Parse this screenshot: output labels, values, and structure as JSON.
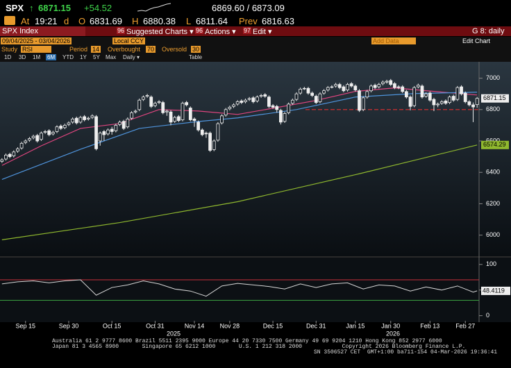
{
  "header": {
    "ticker": "SPX",
    "direction": "↑",
    "last": "6871.15",
    "change": "+54.52",
    "bid_ask": "6869.60 / 6873.09",
    "time_label": "At",
    "time": "19:21",
    "d": "d",
    "open_label": "O",
    "open": "6831.69",
    "high_label": "H",
    "high": "6880.38",
    "low_label": "L",
    "low": "6811.64",
    "prev_label": "Prev",
    "prev": "6816.63"
  },
  "menu": {
    "security": "SPX Index",
    "items": [
      {
        "num": "96",
        "label": "Suggested Charts ▾"
      },
      {
        "num": "96",
        "label": "Actions ▾"
      },
      {
        "num": "97",
        "label": "Edit ▾"
      }
    ],
    "right": "G 8: daily"
  },
  "toolbar": {
    "date_range": "09/04/2025 - 03/04/2026",
    "currency": "Local CCY",
    "add_data": "Add Data",
    "edit_chart": "Edit Chart"
  },
  "study": {
    "study_label": "Study",
    "study": "RSI",
    "period_label": "Period",
    "period": "14",
    "overbought_label": "Overbought",
    "overbought": "70",
    "oversold_label": "Oversold",
    "oversold": "30"
  },
  "ranges": {
    "items": [
      "1D",
      "3D",
      "1M",
      "6M",
      "YTD",
      "1Y",
      "5Y",
      "Max"
    ],
    "active": 3,
    "frequency": "Daily ▾",
    "table": "Table"
  },
  "footer": {
    "lines": [
      "Australia 61 2 9777 8600 Brazil 5511 2395 9000 Europe 44 20 7330 7500 Germany 49 69 9204 1210 Hong Kong 852 2977 6000",
      "Japan 81 3 4565 8900       Singapore 65 6212 1000       U.S. 1 212 318 2000            Copyright 2026 Bloomberg Finance L.P.",
      "SN 3506527 CET  GMT+1:00 ba711-154 04-Mar-2026 19:36:41"
    ]
  },
  "chart_data": [
    {
      "type": "candlestick",
      "ylim": [
        5870,
        7100
      ],
      "yticks": [
        6000,
        6200,
        6400,
        6600,
        6800,
        7000
      ],
      "categories": [
        null,
        null,
        null,
        null,
        null,
        null,
        "Sep 15",
        null,
        null,
        null,
        null,
        null,
        null,
        null,
        null,
        null,
        null,
        "Sep 30",
        null,
        null,
        null,
        null,
        null,
        null,
        null,
        null,
        null,
        null,
        "Oct 15",
        null,
        null,
        null,
        null,
        null,
        null,
        null,
        null,
        null,
        null,
        "Oct 31",
        null,
        null,
        null,
        null,
        null,
        null,
        null,
        null,
        null,
        "Nov 14",
        null,
        null,
        null,
        null,
        null,
        null,
        null,
        null,
        "Nov 28",
        null,
        null,
        null,
        null,
        null,
        null,
        null,
        null,
        null,
        null,
        "Dec 15",
        null,
        null,
        null,
        null,
        null,
        null,
        null,
        null,
        null,
        null,
        "Dec 31",
        null,
        null,
        null,
        null,
        null,
        null,
        null,
        null,
        null,
        "Jan 15",
        null,
        null,
        null,
        null,
        null,
        null,
        null,
        null,
        "Jan 30",
        null,
        null,
        null,
        null,
        null,
        null,
        null,
        null,
        null,
        "Feb 13",
        null,
        null,
        null,
        null,
        null,
        null,
        null,
        null,
        "Feb 27",
        null,
        null,
        null
      ],
      "years": [
        "2025",
        "2026"
      ],
      "open": [
        6470,
        6485,
        6515,
        6505,
        6535,
        6555,
        6590,
        6605,
        6620,
        6635,
        6610,
        6655,
        6665,
        6645,
        6660,
        6695,
        6685,
        6705,
        6720,
        6745,
        6720,
        6755,
        6740,
        6750,
        6755,
        6600,
        6660,
        6645,
        6675,
        6665,
        6705,
        6725,
        6690,
        6745,
        6785,
        6800,
        6865,
        6885,
        6880,
        6825,
        6845,
        6845,
        6785,
        6785,
        6725,
        6755,
        6735,
        6845,
        6810,
        6740,
        6720,
        6670,
        6650,
        6650,
        6545,
        6605,
        6715,
        6765,
        6805,
        6820,
        6835,
        6855,
        6850,
        6865,
        6875,
        6855,
        6885,
        6895,
        6880,
        6825,
        6820,
        6795,
        6725,
        6780,
        6840,
        6865,
        6905,
        6935,
        6935,
        6905,
        6885,
        6850,
        6905,
        6925,
        6945,
        6950,
        6960,
        6945,
        6925,
        6965,
        6950,
        6920,
        6800,
        6880,
        6920,
        6955,
        6945,
        6965,
        6975,
        6985,
        6965,
        6945,
        6945,
        6915,
        6880,
        6825,
        6945,
        6950,
        6885,
        6905,
        6865,
        6830,
        6840,
        6855,
        6845,
        6885,
        6865,
        6945,
        6905,
        6850,
        6830,
        6831.69
      ],
      "high": [
        6490,
        6520,
        6525,
        6540,
        6560,
        6595,
        6610,
        6625,
        6640,
        6645,
        6660,
        6670,
        6675,
        6665,
        6700,
        6705,
        6710,
        6725,
        6750,
        6755,
        6760,
        6765,
        6755,
        6770,
        6765,
        6660,
        6670,
        6680,
        6690,
        6710,
        6730,
        6735,
        6750,
        6790,
        6800,
        6870,
        6890,
        6900,
        6890,
        6850,
        6860,
        6855,
        6800,
        6795,
        6760,
        6765,
        6850,
        6855,
        6820,
        6750,
        6730,
        6680,
        6660,
        6660,
        6610,
        6720,
        6770,
        6810,
        6825,
        6840,
        6860,
        6865,
        6870,
        6880,
        6885,
        6890,
        6900,
        6905,
        6890,
        6835,
        6830,
        6805,
        6785,
        6845,
        6870,
        6910,
        6940,
        6945,
        6945,
        6915,
        6895,
        6910,
        6930,
        6950,
        6955,
        6970,
        6970,
        6955,
        6970,
        6975,
        6960,
        6930,
        6885,
        6925,
        6960,
        6965,
        6970,
        6985,
        6990,
        6995,
        6975,
        6955,
        6955,
        6925,
        6890,
        6950,
        6965,
        6960,
        6910,
        6915,
        6875,
        6845,
        6860,
        6865,
        6890,
        6895,
        6950,
        6955,
        6915,
        6860,
        6845,
        6880.38
      ],
      "low": [
        6460,
        6475,
        6490,
        6495,
        6525,
        6545,
        6580,
        6595,
        6610,
        6590,
        6600,
        6645,
        6630,
        6635,
        6650,
        6670,
        6675,
        6695,
        6710,
        6705,
        6710,
        6725,
        6730,
        6740,
        6540,
        6570,
        6600,
        6635,
        6640,
        6655,
        6695,
        6670,
        6680,
        6735,
        6775,
        6790,
        6855,
        6875,
        6810,
        6815,
        6835,
        6770,
        6760,
        6700,
        6715,
        6720,
        6725,
        6820,
        6725,
        6690,
        6660,
        6630,
        6620,
        6530,
        6535,
        6595,
        6705,
        6755,
        6795,
        6810,
        6825,
        6835,
        6840,
        6855,
        6840,
        6845,
        6875,
        6875,
        6810,
        6805,
        6780,
        6705,
        6715,
        6770,
        6830,
        6855,
        6895,
        6925,
        6895,
        6880,
        6835,
        6840,
        6895,
        6915,
        6935,
        6940,
        6930,
        6910,
        6915,
        6940,
        6915,
        6785,
        6790,
        6870,
        6910,
        6930,
        6935,
        6955,
        6965,
        6950,
        6930,
        6930,
        6905,
        6870,
        6795,
        6815,
        6935,
        6870,
        6875,
        6850,
        6790,
        6815,
        6830,
        6830,
        6835,
        6850,
        6855,
        6890,
        6840,
        6820,
        6720,
        6811.64
      ],
      "close": [
        6480,
        6510,
        6500,
        6530,
        6550,
        6585,
        6600,
        6615,
        6630,
        6600,
        6650,
        6660,
        6640,
        6655,
        6690,
        6680,
        6700,
        6715,
        6740,
        6715,
        6750,
        6735,
        6745,
        6760,
        6550,
        6650,
        6640,
        6670,
        6660,
        6700,
        6720,
        6680,
        6740,
        6780,
        6790,
        6860,
        6880,
        6890,
        6820,
        6840,
        6850,
        6780,
        6790,
        6720,
        6750,
        6730,
        6840,
        6830,
        6735,
        6730,
        6670,
        6640,
        6645,
        6540,
        6600,
        6710,
        6760,
        6800,
        6815,
        6830,
        6850,
        6845,
        6860,
        6870,
        6850,
        6880,
        6890,
        6885,
        6820,
        6815,
        6800,
        6720,
        6775,
        6835,
        6860,
        6900,
        6930,
        6935,
        6905,
        6890,
        6845,
        6900,
        6920,
        6940,
        6945,
        6960,
        6940,
        6920,
        6960,
        6950,
        6925,
        6795,
        6875,
        6915,
        6950,
        6940,
        6960,
        6975,
        6980,
        6960,
        6940,
        6940,
        6915,
        6880,
        6820,
        6940,
        6955,
        6880,
        6900,
        6860,
        6830,
        6835,
        6850,
        6840,
        6880,
        6860,
        6940,
        6900,
        6850,
        6830,
        6816.63,
        6871.15
      ],
      "reference_line": 6800,
      "reference_color": "#e03030",
      "series": [
        {
          "color": "#e0457f",
          "x": [
            0,
            10,
            20,
            30,
            40,
            50,
            60,
            70,
            80,
            90,
            100,
            110,
            121
          ],
          "values": [
            6444,
            6569,
            6680,
            6711,
            6800,
            6791,
            6769,
            6813,
            6858,
            6916,
            6938,
            6916,
            6893
          ]
        },
        {
          "color": "#4f94dc",
          "x": [
            0,
            20,
            35,
            50,
            60,
            75,
            90,
            105,
            121
          ],
          "values": [
            6355,
            6547,
            6680,
            6724,
            6747,
            6800,
            6880,
            6902,
            6911
          ]
        },
        {
          "color": "#8fb82e",
          "x": [
            0,
            30,
            60,
            91,
            121
          ],
          "values": [
            5970,
            6080,
            6213,
            6391,
            6574.29
          ]
        }
      ]
    },
    {
      "type": "line",
      "ylim": [
        -10,
        112
      ],
      "yticks": [
        0,
        50,
        100
      ],
      "color": "#d8d8d8",
      "x": [
        0,
        4,
        8,
        12,
        16,
        20,
        24,
        28,
        32,
        36,
        40,
        44,
        48,
        52,
        56,
        60,
        64,
        68,
        72,
        76,
        80,
        84,
        88,
        92,
        96,
        100,
        104,
        108,
        112,
        116,
        120,
        121
      ],
      "values": [
        62,
        66,
        68,
        64,
        68,
        70,
        40,
        55,
        60,
        68,
        62,
        52,
        48,
        38,
        58,
        63,
        60,
        57,
        52,
        62,
        55,
        62,
        64,
        52,
        60,
        58,
        48,
        56,
        50,
        58,
        46,
        48.4119
      ],
      "hlines": [
        {
          "value": 70,
          "color": "#c8303a"
        },
        {
          "value": 30,
          "color": "#3aa040"
        }
      ]
    }
  ]
}
